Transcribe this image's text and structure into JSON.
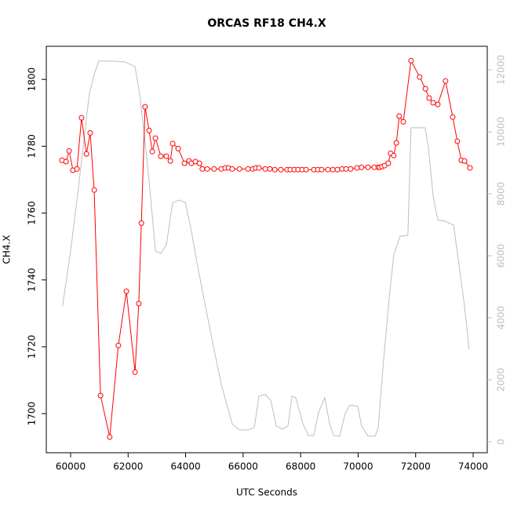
{
  "chart_data": {
    "type": "line",
    "title": "ORCAS RF18 CH4.X",
    "x_label": "UTC Seconds",
    "y_label": "CH4.X",
    "xlim": [
      59154,
      74491
    ],
    "ylim": [
      1688.3,
      1809.9
    ],
    "y2lim": [
      -354,
      12759
    ],
    "xticks": [
      60000,
      62000,
      64000,
      66000,
      68000,
      70000,
      72000,
      74000
    ],
    "yticks": [
      1700,
      1720,
      1740,
      1760,
      1780,
      1800
    ],
    "y2ticks": [
      0,
      2000,
      4000,
      6000,
      8000,
      10000,
      12000
    ],
    "y2_color": "#bebebe",
    "series": [
      {
        "color": "#ff0000",
        "markers": true,
        "x": [
          59700,
          59840,
          59950,
          60080,
          60220,
          60380,
          60550,
          60680,
          60820,
          61040,
          61360,
          61660,
          61940,
          62240,
          62370,
          62460,
          62590,
          62730,
          62840,
          62950,
          63140,
          63330,
          63470,
          63550,
          63740,
          63960,
          64120,
          64200,
          64340,
          64480,
          64580,
          64750,
          64990,
          65240,
          65380,
          65490,
          65620,
          65870,
          66170,
          66330,
          66440,
          66550,
          66770,
          66930,
          67100,
          67310,
          67530,
          67640,
          67780,
          67910,
          68050,
          68190,
          68460,
          68600,
          68730,
          68950,
          69120,
          69280,
          69440,
          69580,
          69740,
          69960,
          70120,
          70340,
          70560,
          70700,
          70750,
          70830,
          70920,
          71050,
          71130,
          71240,
          71330,
          71430,
          71570,
          71840,
          72140,
          72340,
          72470,
          72610,
          72770,
          73040,
          73290,
          73450,
          73590,
          73700,
          73890
        ],
        "values": [
          1775.8,
          1775.4,
          1778.6,
          1772.8,
          1773.2,
          1788.5,
          1777.7,
          1784.0,
          1766.9,
          1705.4,
          1693.0,
          1720.4,
          1736.6,
          1712.4,
          1732.9,
          1757.0,
          1791.8,
          1784.7,
          1778.4,
          1782.4,
          1777.0,
          1777.0,
          1775.6,
          1780.8,
          1779.3,
          1774.9,
          1775.6,
          1774.9,
          1775.4,
          1774.9,
          1773.2,
          1773.2,
          1773.2,
          1773.2,
          1773.5,
          1773.5,
          1773.2,
          1773.2,
          1773.2,
          1773.2,
          1773.5,
          1773.5,
          1773.2,
          1773.2,
          1773.0,
          1773.0,
          1773.0,
          1773.0,
          1773.0,
          1773.0,
          1773.0,
          1773.0,
          1773.0,
          1773.0,
          1773.0,
          1773.0,
          1773.0,
          1773.0,
          1773.2,
          1773.2,
          1773.2,
          1773.5,
          1773.7,
          1773.7,
          1773.7,
          1773.7,
          1773.7,
          1773.9,
          1774.2,
          1774.9,
          1777.9,
          1777.2,
          1781.0,
          1789.0,
          1787.3,
          1805.6,
          1800.7,
          1797.2,
          1794.4,
          1793.0,
          1792.5,
          1799.5,
          1788.7,
          1781.5,
          1775.8,
          1775.6,
          1773.5
        ]
      },
      {
        "color": "#bebebe",
        "axis": "y2",
        "markers": false,
        "x": [
          59720,
          60000,
          60270,
          60490,
          60650,
          60820,
          60980,
          61500,
          61910,
          62240,
          62400,
          62590,
          62780,
          62950,
          63140,
          63330,
          63550,
          63770,
          63990,
          64180,
          64420,
          64690,
          64960,
          65240,
          65620,
          65870,
          66170,
          66390,
          66550,
          66770,
          66960,
          67150,
          67370,
          67560,
          67700,
          67830,
          68080,
          68270,
          68460,
          68630,
          68840,
          69010,
          69150,
          69360,
          69550,
          69720,
          69990,
          70120,
          70340,
          70590,
          70700,
          70860,
          71080,
          71240,
          71460,
          71730,
          71840,
          72330,
          72450,
          72610,
          72770,
          73040,
          73320,
          73480,
          73700,
          73860
        ],
        "values": [
          4380,
          6150,
          8180,
          9950,
          11220,
          11850,
          12280,
          12280,
          12250,
          12100,
          11220,
          9700,
          7920,
          6150,
          6080,
          6350,
          7720,
          7800,
          7720,
          6910,
          5650,
          4380,
          3110,
          1850,
          580,
          380,
          380,
          460,
          1470,
          1520,
          1340,
          510,
          410,
          510,
          1470,
          1420,
          580,
          200,
          200,
          960,
          1420,
          580,
          200,
          180,
          910,
          1190,
          1140,
          510,
          180,
          180,
          460,
          2350,
          4630,
          6030,
          6630,
          6660,
          10130,
          10130,
          9450,
          7920,
          7160,
          7110,
          6990,
          5900,
          4380,
          2990
        ]
      }
    ]
  }
}
